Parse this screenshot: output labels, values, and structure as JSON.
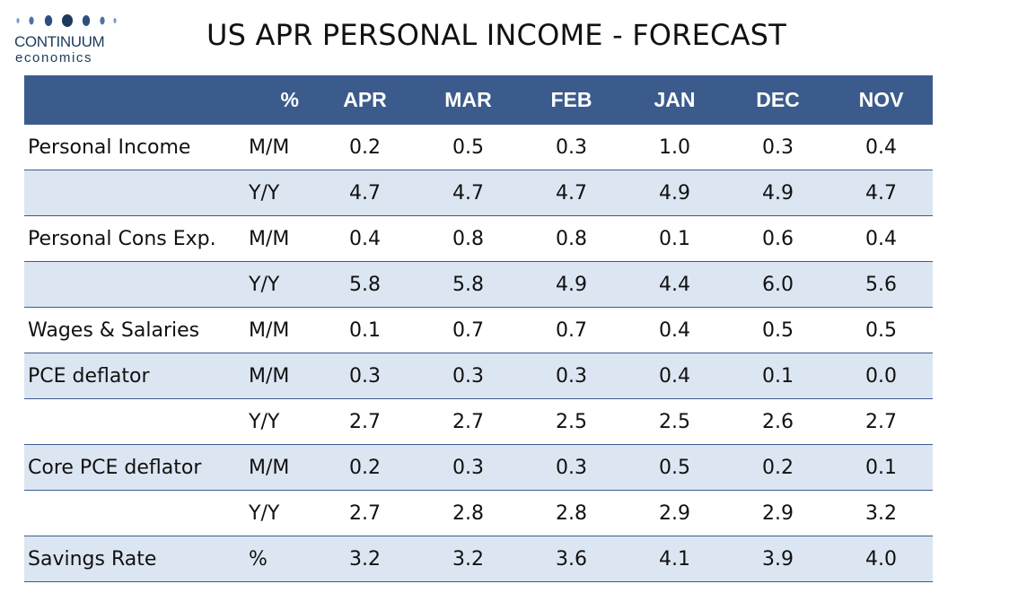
{
  "logo": {
    "name": "CONTINUUM",
    "sub": "economics"
  },
  "title": "US APR PERSONAL INCOME - FORECAST",
  "table": {
    "unit_header": "%",
    "columns": [
      "APR",
      "MAR",
      "FEB",
      "JAN",
      "DEC",
      "NOV"
    ],
    "rows": [
      {
        "label": "Personal Income",
        "unit": "M/M",
        "values": [
          "0.2",
          "0.5",
          "0.3",
          "1.0",
          "0.3",
          "0.4"
        ],
        "shaded": false
      },
      {
        "label": "",
        "unit": "Y/Y",
        "values": [
          "4.7",
          "4.7",
          "4.7",
          "4.9",
          "4.9",
          "4.7"
        ],
        "shaded": true
      },
      {
        "label": "Personal Cons Exp.",
        "unit": "M/M",
        "values": [
          "0.4",
          "0.8",
          "0.8",
          "0.1",
          "0.6",
          "0.4"
        ],
        "shaded": false
      },
      {
        "label": "",
        "unit": "Y/Y",
        "values": [
          "5.8",
          "5.8",
          "4.9",
          "4.4",
          "6.0",
          "5.6"
        ],
        "shaded": true
      },
      {
        "label": "Wages & Salaries",
        "unit": "M/M",
        "values": [
          "0.1",
          "0.7",
          "0.7",
          "0.4",
          "0.5",
          "0.5"
        ],
        "shaded": false
      },
      {
        "label": "PCE deflator",
        "unit": "M/M",
        "values": [
          "0.3",
          "0.3",
          "0.3",
          "0.4",
          "0.1",
          "0.0"
        ],
        "shaded": true
      },
      {
        "label": "",
        "unit": "Y/Y",
        "values": [
          "2.7",
          "2.7",
          "2.5",
          "2.5",
          "2.6",
          "2.7"
        ],
        "shaded": false
      },
      {
        "label": "Core PCE deflator",
        "unit": "M/M",
        "values": [
          "0.2",
          "0.3",
          "0.3",
          "0.5",
          "0.2",
          "0.1"
        ],
        "shaded": true
      },
      {
        "label": "",
        "unit": "Y/Y",
        "values": [
          "2.7",
          "2.8",
          "2.8",
          "2.9",
          "2.9",
          "3.2"
        ],
        "shaded": false
      },
      {
        "label": "Savings Rate",
        "unit": "%",
        "values": [
          "3.2",
          "3.2",
          "3.6",
          "4.1",
          "3.9",
          "4.0"
        ],
        "shaded": true
      }
    ]
  },
  "colors": {
    "header_bg": "#3b5b8c",
    "shade_bg": "#dce6f2",
    "brand": "#1d3a5c"
  }
}
